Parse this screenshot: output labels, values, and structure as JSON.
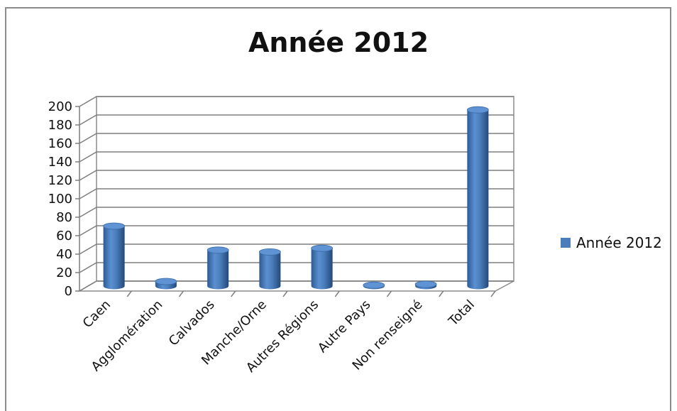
{
  "chart_data": {
    "type": "bar",
    "title": "Année 2012",
    "categories": [
      "Caen",
      "Agglomération",
      "Calvados",
      "Manche/Orne",
      "Autres Régions",
      "Autre Pays",
      "Non renseigné",
      "Total"
    ],
    "series": [
      {
        "name": "Année 2012",
        "values": [
          65,
          5,
          39,
          37,
          41,
          1,
          2,
          191
        ],
        "color": "#4a7ebb"
      }
    ],
    "y_ticks": [
      "0",
      "20",
      "40",
      "60",
      "80",
      "100",
      "120",
      "140",
      "160",
      "180",
      "200"
    ],
    "ylim": [
      0,
      200
    ],
    "xlabel": "",
    "ylabel": "",
    "grid": true,
    "legend_position": "right",
    "style": "3d-cylinder"
  }
}
